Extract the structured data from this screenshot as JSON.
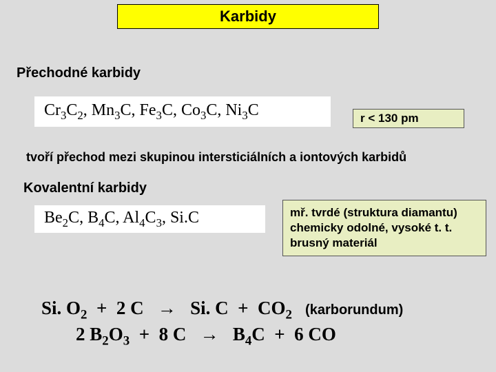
{
  "title": "Karbidy",
  "section1": {
    "heading": "Přechodné karbidy",
    "formulas": [
      {
        "base": "Cr",
        "sub1": "3",
        "mid": "C",
        "sub2": "2"
      },
      {
        "base": "Mn",
        "sub1": "3",
        "mid": "C",
        "sub2": ""
      },
      {
        "base": "Fe",
        "sub1": "3",
        "mid": "C",
        "sub2": ""
      },
      {
        "base": "Co",
        "sub1": "3",
        "mid": "C",
        "sub2": ""
      },
      {
        "base": "Ni",
        "sub1": "3",
        "mid": "C",
        "sub2": ""
      }
    ],
    "note": "r < 130 pm",
    "desc": "tvoří přechod mezi skupinou intersticiálních a iontových karbidů"
  },
  "section2": {
    "heading": "Kovalentní karbidy",
    "formulas_text": "Be₂C, B₄C, Al₄C₃, SiC",
    "notes": [
      "mř. tvrdé (struktura diamantu)",
      "chemicky odolné, vysoké  t. t.",
      "brusný materiál"
    ]
  },
  "reactions": {
    "r1_left": "Si. O",
    "r1_sub1": "2",
    "r1_mid1": "  +  2 C   →   Si. C  +  CO",
    "r1_sub2": "2",
    "r1_karb": "  (karborundum)",
    "r2": "2 B₂O₃  +  8 C   →   B₄C  +  6 CO"
  },
  "colors": {
    "bg": "#dcdcdc",
    "title_bg": "#ffff00",
    "note_bg": "#e8eec2",
    "formula_bg": "#ffffff"
  }
}
